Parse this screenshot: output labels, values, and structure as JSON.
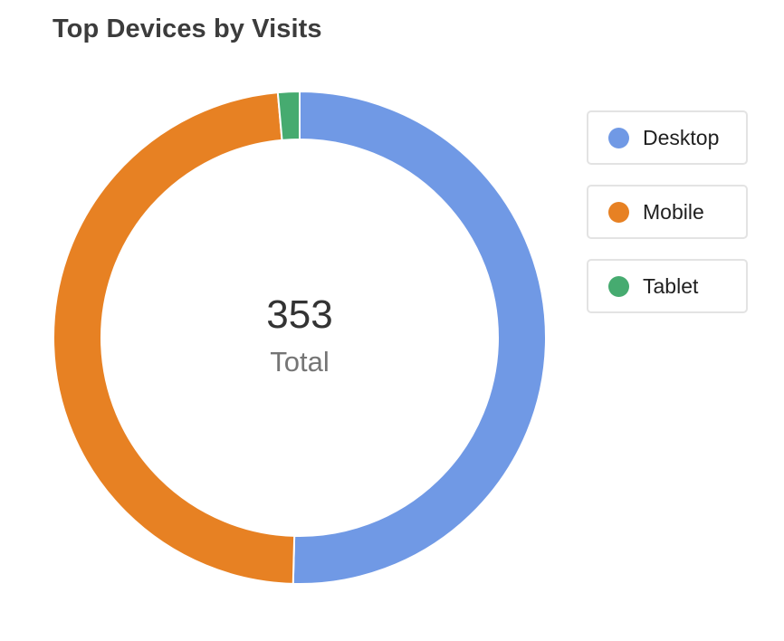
{
  "title": "Top Devices by Visits",
  "center": {
    "total": "353",
    "label": "Total"
  },
  "chart_data": {
    "type": "pie",
    "title": "Top Devices by Visits",
    "donut": true,
    "total": 353,
    "categories": [
      "Desktop",
      "Mobile",
      "Tablet"
    ],
    "values": [
      178,
      170,
      5
    ],
    "colors": [
      "#7099e5",
      "#e78123",
      "#46ab70"
    ],
    "legend_placement": "right"
  }
}
